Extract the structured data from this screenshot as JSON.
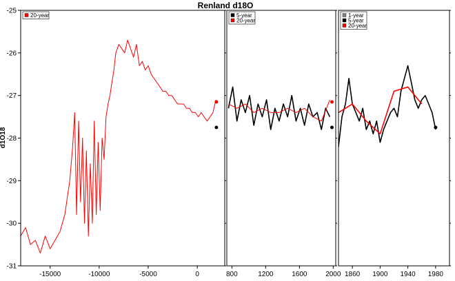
{
  "chart_data": {
    "title": "Renland d18O",
    "ylabel": "d1O18",
    "ylim": [
      -31,
      -25
    ],
    "yticks": [
      -31,
      -30,
      -29,
      -28,
      -27,
      -26,
      -25
    ],
    "colors": {
      "one_year": "#808080",
      "five_year": "#000000",
      "twenty_year": "#ff0000"
    },
    "panels": [
      {
        "type": "line",
        "xlim": [
          -18000,
          2800
        ],
        "xticks": [
          -15000,
          -10000,
          -5000,
          0
        ],
        "legend": {
          "position": "top-left",
          "entries": [
            {
              "name": "20-year",
              "color": "#ff0000"
            }
          ]
        },
        "series": [
          {
            "name": "20-year",
            "color": "#ff0000",
            "x": [
              -18000,
              -17500,
              -17000,
              -16500,
              -16000,
              -15500,
              -15000,
              -14500,
              -14000,
              -13500,
              -13000,
              -12700,
              -12500,
              -12300,
              -12100,
              -11900,
              -11700,
              -11500,
              -11300,
              -11100,
              -10900,
              -10700,
              -10500,
              -10300,
              -10100,
              -9900,
              -9700,
              -9500,
              -9300,
              -9100,
              -8900,
              -8700,
              -8500,
              -8300,
              -8000,
              -7700,
              -7400,
              -7100,
              -6800,
              -6500,
              -6200,
              -5900,
              -5600,
              -5300,
              -5000,
              -4700,
              -4400,
              -4100,
              -3800,
              -3500,
              -3200,
              -2900,
              -2600,
              -2300,
              -2000,
              -1700,
              -1400,
              -1100,
              -800,
              -500,
              -200,
              100,
              400,
              700,
              1000,
              1300,
              1600,
              1900
            ],
            "y": [
              -30.3,
              -30.1,
              -30.5,
              -30.4,
              -30.7,
              -30.3,
              -30.6,
              -30.4,
              -30.2,
              -29.8,
              -29.0,
              -28.2,
              -27.4,
              -29.8,
              -27.6,
              -29.5,
              -28.0,
              -30.0,
              -28.3,
              -30.3,
              -28.6,
              -30.0,
              -27.6,
              -29.8,
              -28.1,
              -29.7,
              -28.0,
              -28.5,
              -27.5,
              -27.2,
              -27.0,
              -26.7,
              -26.4,
              -26.0,
              -25.8,
              -25.9,
              -26.0,
              -25.7,
              -25.9,
              -26.1,
              -25.8,
              -26.3,
              -26.2,
              -26.4,
              -26.3,
              -26.5,
              -26.6,
              -26.7,
              -26.8,
              -26.9,
              -26.9,
              -27.0,
              -27.0,
              -27.1,
              -27.2,
              -27.2,
              -27.2,
              -27.3,
              -27.3,
              -27.4,
              -27.4,
              -27.5,
              -27.4,
              -27.5,
              -27.6,
              -27.5,
              -27.4,
              -27.1
            ]
          }
        ],
        "markers": [
          {
            "x": 1950,
            "y": -27.15,
            "color": "#ff0000"
          },
          {
            "x": 1950,
            "y": -27.75,
            "color": "#000000"
          }
        ]
      },
      {
        "type": "line",
        "xlim": [
          740,
          2030
        ],
        "xticks": [
          800,
          1200,
          1600,
          2000
        ],
        "legend": {
          "position": "top-left",
          "entries": [
            {
              "name": "5-year",
              "color": "#000000"
            },
            {
              "name": "20-year",
              "color": "#ff0000"
            }
          ]
        },
        "series": [
          {
            "name": "5-year",
            "color": "#000000",
            "x": [
              760,
              810,
              860,
              910,
              960,
              1010,
              1060,
              1110,
              1160,
              1210,
              1260,
              1310,
              1360,
              1410,
              1460,
              1510,
              1560,
              1610,
              1660,
              1710,
              1760,
              1810,
              1860,
              1910,
              1960
            ],
            "y": [
              -27.3,
              -26.8,
              -27.6,
              -27.1,
              -27.4,
              -27.0,
              -27.7,
              -27.2,
              -27.5,
              -27.1,
              -27.8,
              -27.3,
              -27.6,
              -27.2,
              -27.5,
              -27.0,
              -27.6,
              -27.3,
              -27.7,
              -27.2,
              -27.5,
              -27.4,
              -27.8,
              -27.3,
              -27.5
            ]
          },
          {
            "name": "20-year",
            "color": "#ff0000",
            "x": [
              760,
              860,
              960,
              1060,
              1160,
              1260,
              1360,
              1460,
              1560,
              1660,
              1760,
              1860,
              1960
            ],
            "y": [
              -27.2,
              -27.3,
              -27.2,
              -27.4,
              -27.3,
              -27.4,
              -27.4,
              -27.3,
              -27.4,
              -27.3,
              -27.5,
              -27.6,
              -27.1
            ]
          }
        ],
        "markers": [
          {
            "x": 1985,
            "y": -27.15,
            "color": "#ff0000"
          },
          {
            "x": 1985,
            "y": -27.75,
            "color": "#000000"
          }
        ]
      },
      {
        "type": "line",
        "xlim": [
          1840,
          2000
        ],
        "xticks": [
          1860,
          1900,
          1940,
          1980
        ],
        "legend": {
          "position": "top-left",
          "entries": [
            {
              "name": "1-year",
              "color": "#808080"
            },
            {
              "name": "5-year",
              "color": "#000000"
            },
            {
              "name": "20-year",
              "color": "#ff0000"
            }
          ]
        },
        "series": [
          {
            "name": "5-year",
            "color": "#000000",
            "x": [
              1840,
              1845,
              1850,
              1855,
              1860,
              1865,
              1870,
              1875,
              1880,
              1885,
              1890,
              1895,
              1900,
              1905,
              1910,
              1915,
              1920,
              1925,
              1930,
              1935,
              1940,
              1945,
              1950,
              1955,
              1960,
              1965,
              1970,
              1975,
              1980
            ],
            "y": [
              -28.2,
              -27.5,
              -27.2,
              -26.6,
              -27.2,
              -27.4,
              -27.6,
              -27.3,
              -27.8,
              -27.6,
              -27.9,
              -27.6,
              -28.1,
              -27.8,
              -27.6,
              -27.4,
              -27.3,
              -27.5,
              -26.9,
              -26.6,
              -26.3,
              -26.7,
              -27.1,
              -27.3,
              -27.1,
              -27.0,
              -27.2,
              -27.4,
              -27.8
            ]
          },
          {
            "name": "20-year",
            "color": "#ff0000",
            "x": [
              1840,
              1860,
              1880,
              1900,
              1920,
              1940,
              1960
            ],
            "y": [
              -27.4,
              -27.2,
              -27.6,
              -27.9,
              -26.9,
              -26.8,
              -27.2
            ]
          }
        ],
        "markers": [
          {
            "x": 1980,
            "y": -27.75,
            "color": "#000000"
          }
        ]
      }
    ]
  }
}
